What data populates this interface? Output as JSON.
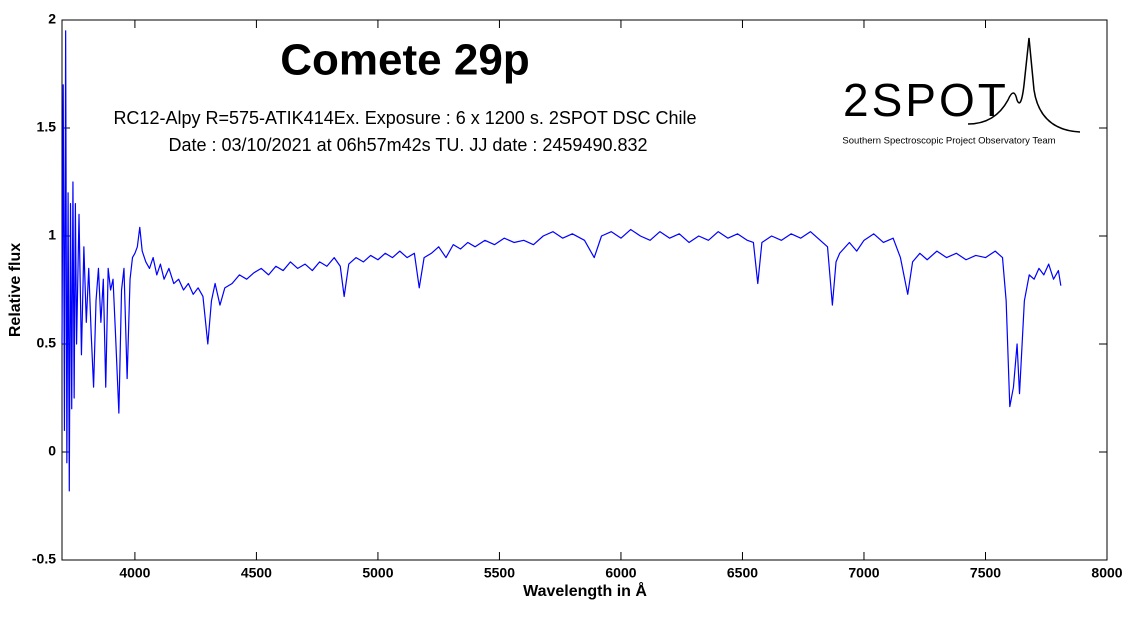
{
  "chart_data": {
    "type": "line",
    "title": "Comete 29p",
    "subtitle": [
      "RC12-Alpy R=575-ATIK414Ex. Exposure : 6 x 1200 s. 2SPOT DSC Chile",
      "Date : 03/10/2021 at 06h57m42s TU. JJ date : 2459490.832"
    ],
    "logo": {
      "title": "2SPOT",
      "caption": "Southern Spectroscopic Project Observatory Team"
    },
    "xlabel": "Wavelength in Å",
    "ylabel": "Relative flux",
    "xlim": [
      3700,
      8000
    ],
    "xticks": [
      4000,
      4500,
      5000,
      5500,
      6000,
      6500,
      7000,
      7500,
      8000
    ],
    "ylim": [
      -0.5,
      2
    ],
    "yticks": [
      -0.5,
      0,
      0.5,
      1,
      1.5,
      2
    ],
    "grid": false,
    "series": [
      {
        "color": "#0000ff",
        "x": [
          3700,
          3705,
          3710,
          3715,
          3720,
          3725,
          3730,
          3735,
          3740,
          3745,
          3750,
          3755,
          3760,
          3770,
          3780,
          3790,
          3800,
          3810,
          3820,
          3830,
          3840,
          3850,
          3860,
          3870,
          3880,
          3890,
          3900,
          3910,
          3920,
          3934,
          3945,
          3955,
          3968,
          3980,
          3990,
          4000,
          4010,
          4020,
          4030,
          4045,
          4060,
          4075,
          4090,
          4105,
          4120,
          4140,
          4160,
          4180,
          4200,
          4220,
          4240,
          4260,
          4280,
          4300,
          4315,
          4330,
          4350,
          4370,
          4400,
          4430,
          4460,
          4490,
          4520,
          4550,
          4580,
          4610,
          4640,
          4670,
          4700,
          4730,
          4760,
          4790,
          4820,
          4845,
          4861,
          4880,
          4910,
          4940,
          4970,
          5000,
          5030,
          5060,
          5090,
          5120,
          5150,
          5170,
          5190,
          5220,
          5250,
          5280,
          5310,
          5340,
          5370,
          5400,
          5440,
          5480,
          5520,
          5560,
          5600,
          5640,
          5680,
          5720,
          5760,
          5800,
          5850,
          5890,
          5920,
          5960,
          6000,
          6040,
          6080,
          6120,
          6160,
          6200,
          6240,
          6280,
          6320,
          6360,
          6400,
          6440,
          6480,
          6520,
          6545,
          6563,
          6580,
          6620,
          6660,
          6700,
          6740,
          6780,
          6820,
          6850,
          6870,
          6885,
          6900,
          6940,
          6970,
          7000,
          7040,
          7080,
          7120,
          7150,
          7180,
          7200,
          7230,
          7260,
          7300,
          7340,
          7380,
          7420,
          7460,
          7500,
          7540,
          7570,
          7585,
          7600,
          7615,
          7630,
          7640,
          7660,
          7680,
          7700,
          7720,
          7740,
          7760,
          7780,
          7800,
          7810
        ],
        "values": [
          0.5,
          1.7,
          0.1,
          1.95,
          -0.05,
          1.2,
          -0.18,
          1.15,
          0.2,
          1.25,
          0.25,
          1.15,
          0.5,
          1.1,
          0.45,
          0.95,
          0.6,
          0.85,
          0.55,
          0.3,
          0.7,
          0.85,
          0.6,
          0.8,
          0.3,
          0.85,
          0.75,
          0.8,
          0.55,
          0.18,
          0.75,
          0.85,
          0.34,
          0.8,
          0.9,
          0.92,
          0.95,
          1.04,
          0.93,
          0.88,
          0.85,
          0.9,
          0.82,
          0.87,
          0.8,
          0.85,
          0.78,
          0.8,
          0.75,
          0.78,
          0.73,
          0.76,
          0.72,
          0.5,
          0.7,
          0.78,
          0.68,
          0.76,
          0.78,
          0.82,
          0.8,
          0.83,
          0.85,
          0.82,
          0.86,
          0.84,
          0.88,
          0.85,
          0.87,
          0.84,
          0.88,
          0.86,
          0.9,
          0.86,
          0.72,
          0.87,
          0.9,
          0.88,
          0.91,
          0.89,
          0.92,
          0.9,
          0.93,
          0.9,
          0.92,
          0.76,
          0.9,
          0.92,
          0.95,
          0.9,
          0.96,
          0.94,
          0.97,
          0.95,
          0.98,
          0.96,
          0.99,
          0.97,
          0.98,
          0.96,
          1.0,
          1.02,
          0.99,
          1.01,
          0.98,
          0.9,
          1.0,
          1.02,
          0.99,
          1.03,
          1.0,
          0.98,
          1.02,
          0.99,
          1.01,
          0.97,
          1.0,
          0.98,
          1.02,
          0.99,
          1.01,
          0.98,
          0.97,
          0.78,
          0.97,
          1.0,
          0.98,
          1.01,
          0.99,
          1.02,
          0.98,
          0.95,
          0.68,
          0.88,
          0.92,
          0.97,
          0.93,
          0.98,
          1.01,
          0.97,
          0.99,
          0.9,
          0.73,
          0.88,
          0.92,
          0.89,
          0.93,
          0.9,
          0.92,
          0.89,
          0.91,
          0.9,
          0.93,
          0.9,
          0.7,
          0.21,
          0.3,
          0.5,
          0.27,
          0.7,
          0.82,
          0.8,
          0.85,
          0.82,
          0.87,
          0.8,
          0.84,
          0.77
        ]
      }
    ]
  }
}
